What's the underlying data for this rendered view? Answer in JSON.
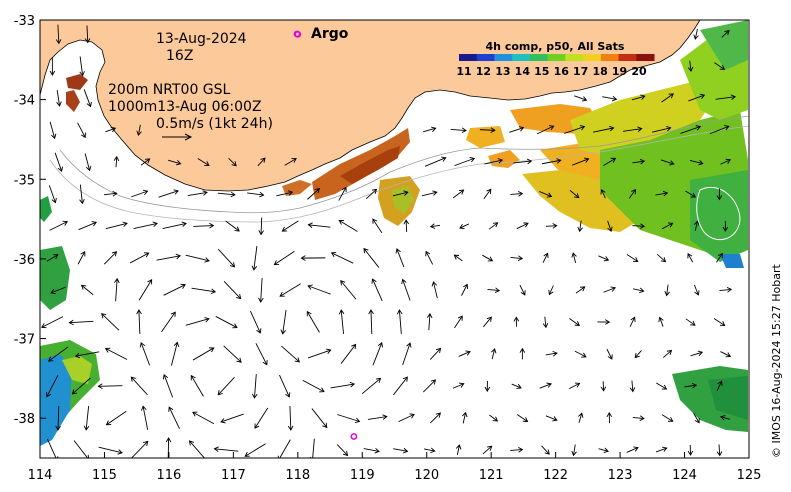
{
  "header": {
    "date": "13-Aug-2024",
    "hour": "16Z",
    "argo_label": "Argo",
    "contour_info": "200m  NRT00 GSL",
    "contour_info2": "1000m13-Aug 06:00Z",
    "arrow_scale": "0.5m/s (1kt 24h)"
  },
  "colorbar": {
    "title": "4h comp, p50, All Sats",
    "ticks": [
      "11",
      "12",
      "13",
      "14",
      "15",
      "16",
      "17",
      "18",
      "19",
      "20"
    ],
    "colors": [
      "#1a1a8c",
      "#1e3fd0",
      "#1e90e0",
      "#20c0c0",
      "#30c060",
      "#70d020",
      "#c0e020",
      "#f0d020",
      "#f08010",
      "#c03010",
      "#8c1010"
    ]
  },
  "axes": {
    "x_ticks": [
      "114",
      "115",
      "116",
      "117",
      "118",
      "119",
      "120",
      "121",
      "122",
      "123",
      "124",
      "125"
    ],
    "y_ticks": [
      "-33",
      "-34",
      "-35",
      "-36",
      "-37",
      "-38"
    ],
    "x_range": [
      114,
      125
    ],
    "y_range": [
      -38.5,
      -33
    ]
  },
  "credit": "© IMOS 16-Aug-2024 15:27 Hobart",
  "colors": {
    "land": "#fcc99a",
    "arrow": "#000000",
    "argo": "#e000e0",
    "contour": "#9a9a9a"
  },
  "argo_floats": [
    {
      "lon": 118.0,
      "lat": -33.18
    },
    {
      "lon": 118.87,
      "lat": -38.23
    }
  ]
}
